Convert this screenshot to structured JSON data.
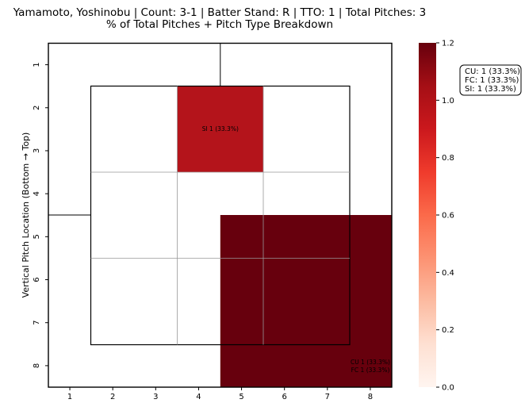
{
  "chart_data": {
    "type": "heatmap",
    "title": "Yamamoto, Yoshinobu | Count: 3-1 | Batter Stand: R | TTO: 1 | Total Pitches: 3",
    "subtitle": "% of Total Pitches + Pitch Type Breakdown",
    "xlabel": "",
    "ylabel": "Vertical Pitch Location (Bottom → Top)",
    "x_categories": [
      "1",
      "2",
      "3",
      "4",
      "5",
      "6",
      "7",
      "8"
    ],
    "y_categories": [
      "1",
      "2",
      "3",
      "4",
      "5",
      "6",
      "7",
      "8"
    ],
    "cells": [
      {
        "zone": "top-middle",
        "value": 0.333,
        "color_value": 1.0,
        "labels": [
          "SI 1 (33.3%)"
        ]
      },
      {
        "zone": "right-lower",
        "value": 0.667,
        "color_value": 1.2,
        "labels": [
          "CU 1 (33.3%)",
          "FC 1 (33.3%)"
        ]
      }
    ],
    "colorbar": {
      "cmap": "Reds",
      "min": 0.0,
      "max": 1.2,
      "ticks": [
        "0.0",
        "0.2",
        "0.4",
        "0.6",
        "0.8",
        "1.0",
        "1.2"
      ]
    },
    "legend_box": {
      "lines": [
        "CU: 1 (33.3%)",
        "FC: 1 (33.3%)",
        "SI: 1 (33.3%)"
      ],
      "placement": "right"
    },
    "colors": {
      "si_cell": "#b4141b",
      "cu_fc_cell": "#67000d",
      "grid_line": "#999999",
      "border": "#000000"
    }
  }
}
